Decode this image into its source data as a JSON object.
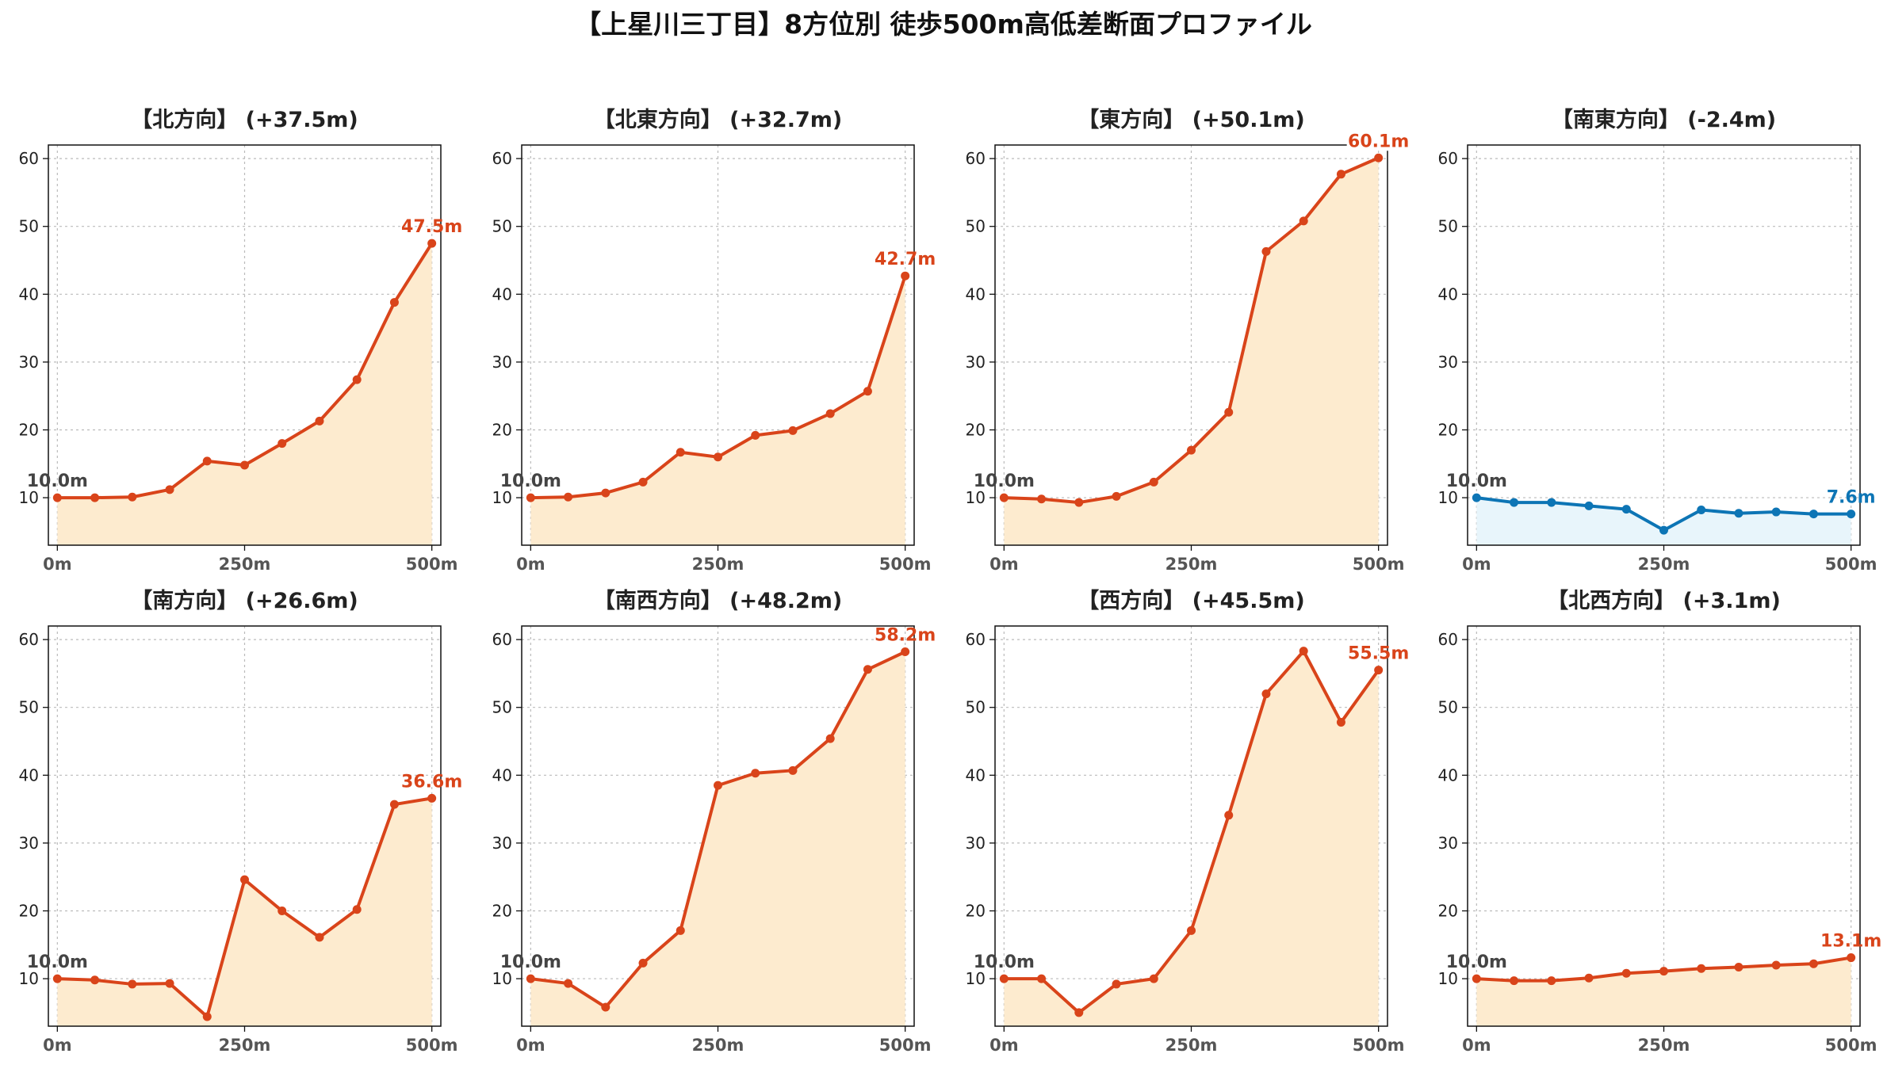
{
  "figure": {
    "title": "【上星川三丁目】8方位別 徒歩500m高低差断面プロファイル"
  },
  "colors": {
    "up_line": "#d9441a",
    "up_fill": "#fdebcf",
    "down_line": "#0d75b5",
    "down_fill": "#e8f5fb",
    "start_label": "#444444",
    "grid": "#bbbbbb"
  },
  "chart_data": [
    {
      "type": "area",
      "title": "【北方向】 (+37.5m)",
      "x": [
        0,
        50,
        100,
        150,
        200,
        250,
        300,
        350,
        400,
        450,
        500
      ],
      "y": [
        10.0,
        10.0,
        10.1,
        11.2,
        15.4,
        14.8,
        18.0,
        21.3,
        27.4,
        38.8,
        47.5
      ],
      "start_label": "10.0m",
      "end_label": "47.5m",
      "trend": "up",
      "xticks": [
        "0m",
        "250m",
        "500m"
      ],
      "ylim": [
        3,
        62
      ],
      "yticks": [
        10,
        20,
        30,
        40,
        50,
        60
      ],
      "grid": true
    },
    {
      "type": "area",
      "title": "【北東方向】 (+32.7m)",
      "x": [
        0,
        50,
        100,
        150,
        200,
        250,
        300,
        350,
        400,
        450,
        500
      ],
      "y": [
        10.0,
        10.1,
        10.7,
        12.3,
        16.7,
        16.0,
        19.2,
        19.9,
        22.4,
        25.7,
        42.7
      ],
      "start_label": "10.0m",
      "end_label": "42.7m",
      "trend": "up",
      "xticks": [
        "0m",
        "250m",
        "500m"
      ],
      "ylim": [
        3,
        62
      ],
      "yticks": [
        10,
        20,
        30,
        40,
        50,
        60
      ],
      "grid": true
    },
    {
      "type": "area",
      "title": "【東方向】 (+50.1m)",
      "x": [
        0,
        50,
        100,
        150,
        200,
        250,
        300,
        350,
        400,
        450,
        500
      ],
      "y": [
        10.0,
        9.8,
        9.3,
        10.2,
        12.3,
        17.0,
        22.6,
        46.3,
        50.8,
        57.7,
        60.1
      ],
      "start_label": "10.0m",
      "end_label": "60.1m",
      "trend": "up",
      "xticks": [
        "0m",
        "250m",
        "500m"
      ],
      "ylim": [
        3,
        62
      ],
      "yticks": [
        10,
        20,
        30,
        40,
        50,
        60
      ],
      "grid": true
    },
    {
      "type": "area",
      "title": "【南東方向】 (-2.4m)",
      "x": [
        0,
        50,
        100,
        150,
        200,
        250,
        300,
        350,
        400,
        450,
        500
      ],
      "y": [
        10.0,
        9.3,
        9.3,
        8.8,
        8.3,
        5.2,
        8.2,
        7.7,
        7.9,
        7.6,
        7.6
      ],
      "start_label": "10.0m",
      "end_label": "7.6m",
      "trend": "down",
      "xticks": [
        "0m",
        "250m",
        "500m"
      ],
      "ylim": [
        3,
        62
      ],
      "yticks": [
        10,
        20,
        30,
        40,
        50,
        60
      ],
      "grid": true
    },
    {
      "type": "area",
      "title": "【南方向】 (+26.6m)",
      "x": [
        0,
        50,
        100,
        150,
        200,
        250,
        300,
        350,
        400,
        450,
        500
      ],
      "y": [
        10.0,
        9.8,
        9.2,
        9.3,
        4.4,
        24.6,
        20.0,
        16.1,
        20.2,
        35.7,
        36.6
      ],
      "start_label": "10.0m",
      "end_label": "36.6m",
      "trend": "up",
      "xticks": [
        "0m",
        "250m",
        "500m"
      ],
      "ylim": [
        3,
        62
      ],
      "yticks": [
        10,
        20,
        30,
        40,
        50,
        60
      ],
      "grid": true
    },
    {
      "type": "area",
      "title": "【南西方向】 (+48.2m)",
      "x": [
        0,
        50,
        100,
        150,
        200,
        250,
        300,
        350,
        400,
        450,
        500
      ],
      "y": [
        10.0,
        9.3,
        5.8,
        12.3,
        17.1,
        38.5,
        40.3,
        40.7,
        45.4,
        55.6,
        58.2
      ],
      "start_label": "10.0m",
      "end_label": "58.2m",
      "trend": "up",
      "xticks": [
        "0m",
        "250m",
        "500m"
      ],
      "ylim": [
        3,
        62
      ],
      "yticks": [
        10,
        20,
        30,
        40,
        50,
        60
      ],
      "grid": true
    },
    {
      "type": "area",
      "title": "【西方向】 (+45.5m)",
      "x": [
        0,
        50,
        100,
        150,
        200,
        250,
        300,
        350,
        400,
        450,
        500
      ],
      "y": [
        10.0,
        10.0,
        5.0,
        9.2,
        10.0,
        17.1,
        34.1,
        52.0,
        58.3,
        47.8,
        55.5
      ],
      "start_label": "10.0m",
      "end_label": "55.5m",
      "trend": "up",
      "xticks": [
        "0m",
        "250m",
        "500m"
      ],
      "ylim": [
        3,
        62
      ],
      "yticks": [
        10,
        20,
        30,
        40,
        50,
        60
      ],
      "grid": true
    },
    {
      "type": "area",
      "title": "【北西方向】 (+3.1m)",
      "x": [
        0,
        50,
        100,
        150,
        200,
        250,
        300,
        350,
        400,
        450,
        500
      ],
      "y": [
        10.0,
        9.7,
        9.7,
        10.1,
        10.8,
        11.1,
        11.5,
        11.7,
        12.0,
        12.2,
        13.1
      ],
      "start_label": "10.0m",
      "end_label": "13.1m",
      "trend": "up",
      "xticks": [
        "0m",
        "250m",
        "500m"
      ],
      "ylim": [
        3,
        62
      ],
      "yticks": [
        10,
        20,
        30,
        40,
        50,
        60
      ],
      "grid": true
    }
  ]
}
